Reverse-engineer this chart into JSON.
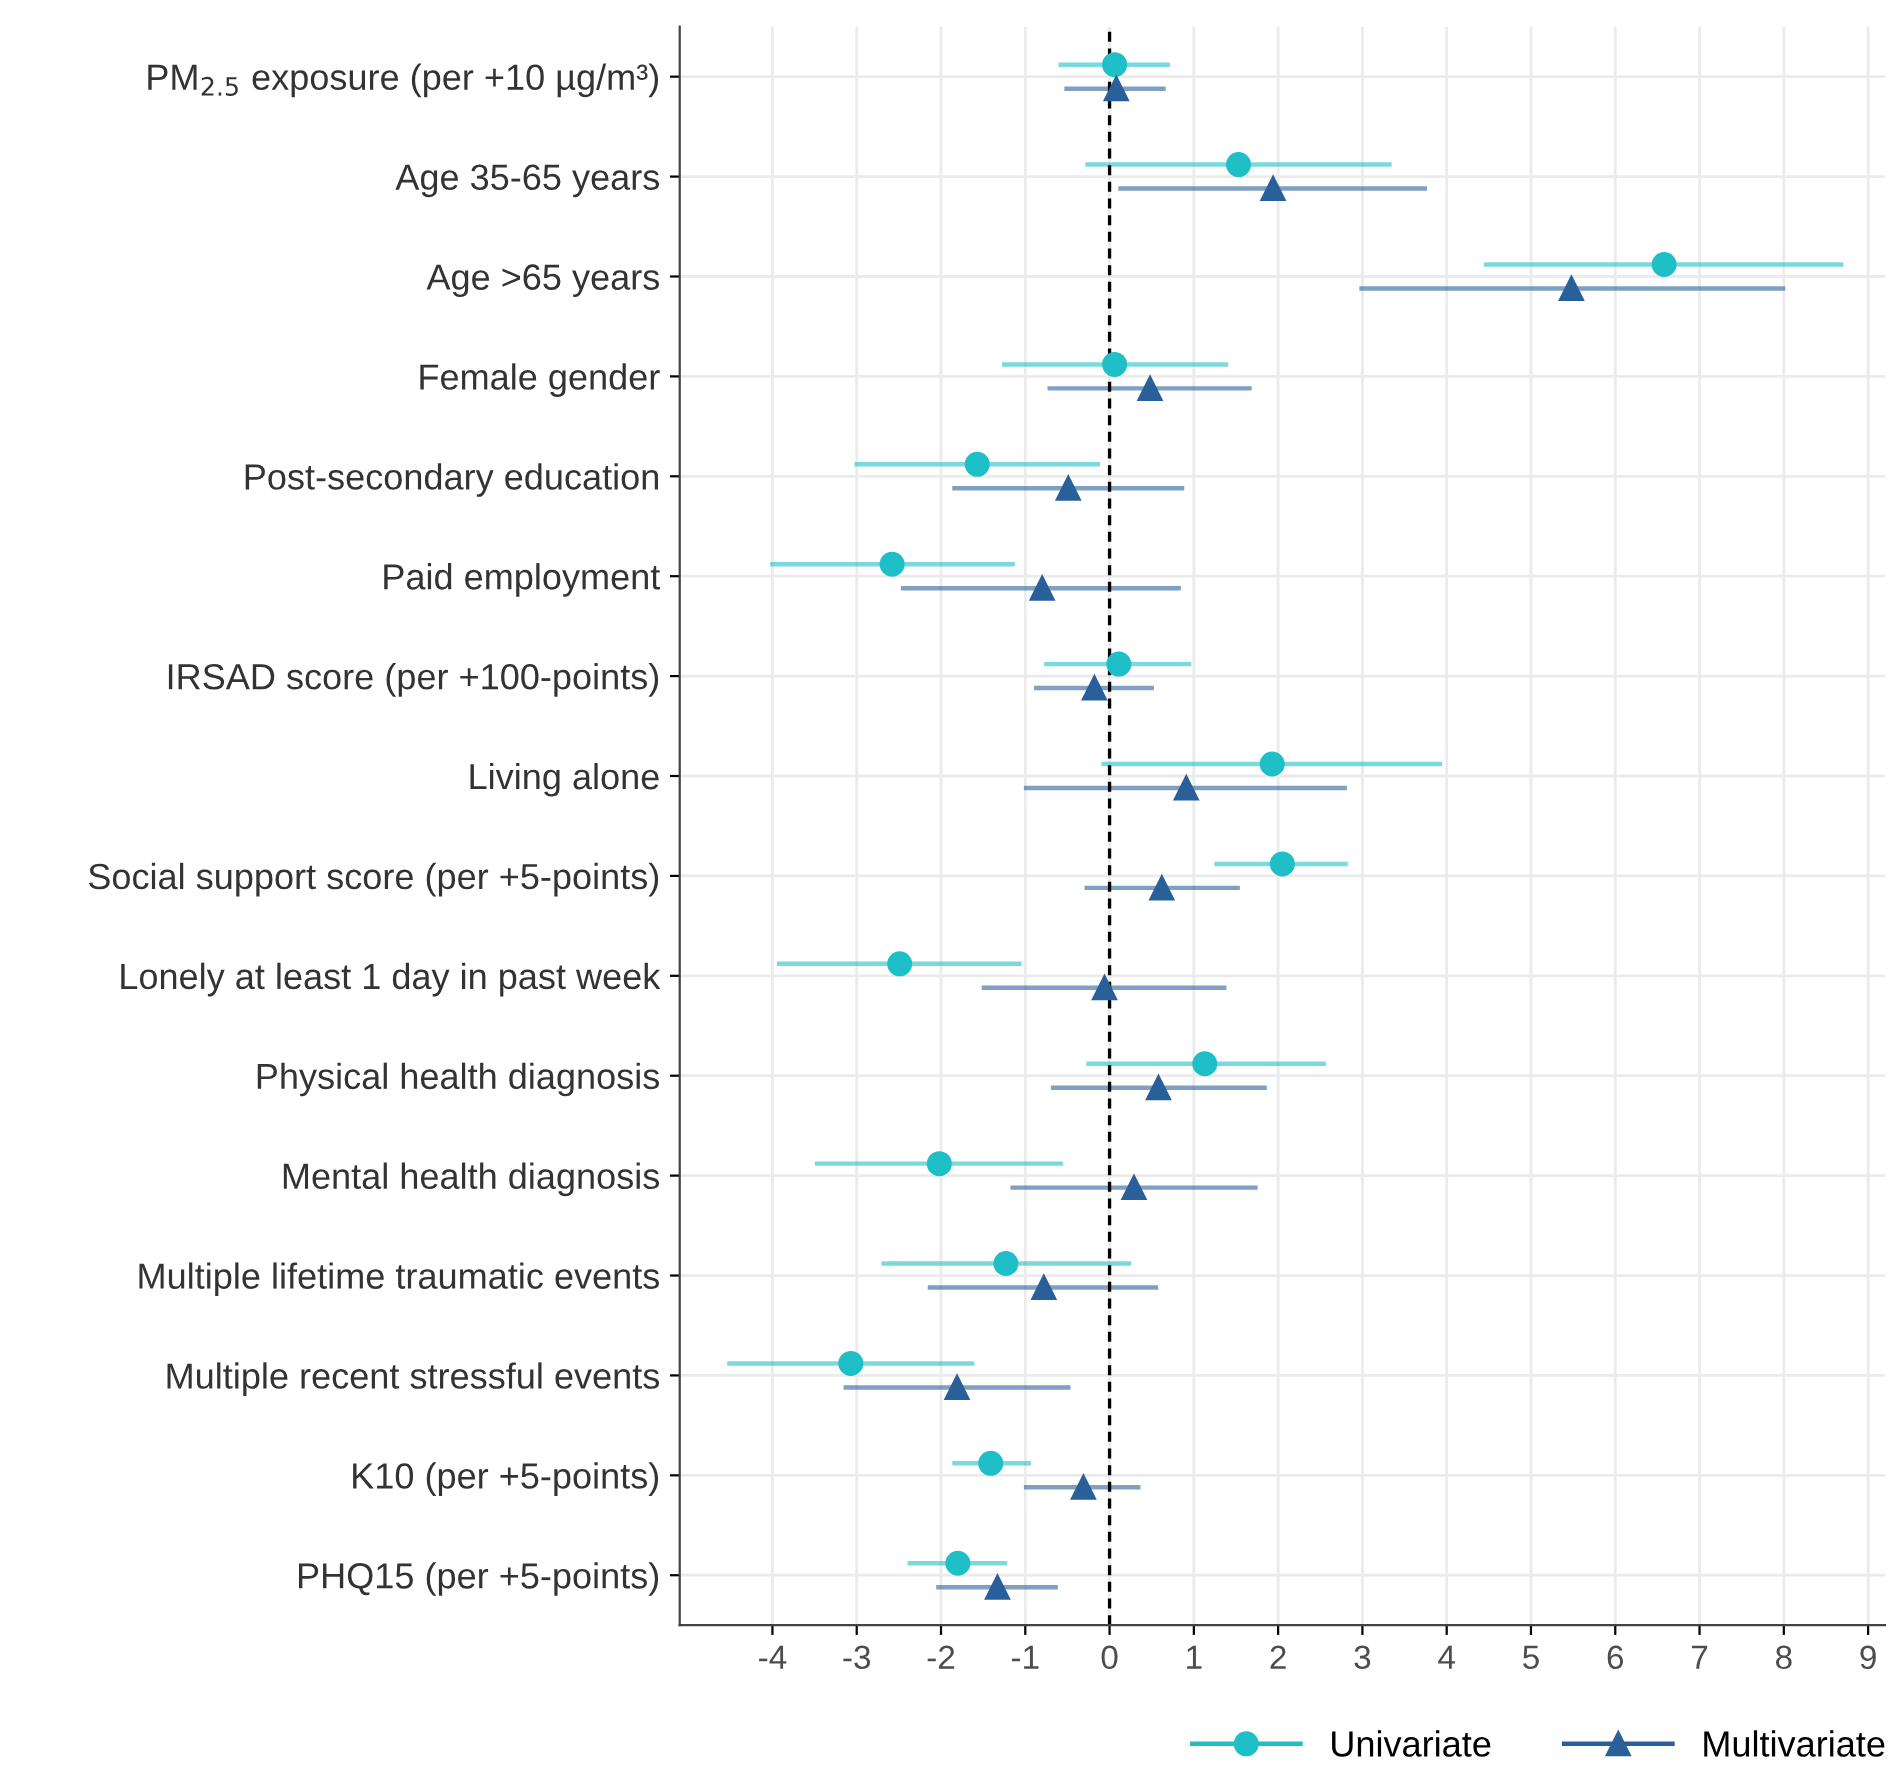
{
  "chart_data": {
    "type": "scatter",
    "orientation": "horizontal",
    "categories": [
      "PM$_{2.5}$ exposure (per +10 µg/m³)",
      "Age 35-65 years",
      "Age >65 years",
      "Female gender",
      "Post-secondary education",
      "Paid employment",
      "IRSAD score (per +100-points)",
      "Living alone",
      "Social support score (per +5-points)",
      "Lonely at least 1 day in past week",
      "Physical health diagnosis",
      "Mental health diagnosis",
      "Multiple lifetime traumatic events",
      "Multiple recent stressful events",
      "K10 (per +5-points)",
      "PHQ15 (per +5-points)"
    ],
    "series": [
      {
        "name": "Univariate",
        "color": "#1fbfc8",
        "marker": "circle",
        "values": [
          0.06,
          1.53,
          6.58,
          0.06,
          -1.57,
          -2.58,
          0.11,
          1.93,
          2.05,
          -2.49,
          1.13,
          -2.02,
          -1.23,
          -3.07,
          -1.41,
          -1.8
        ],
        "errors": [
          [
            -0.58,
            0.69
          ],
          [
            -0.26,
            3.32
          ],
          [
            4.47,
            8.68
          ],
          [
            -1.25,
            1.38
          ],
          [
            -3.0,
            -0.14
          ],
          [
            -4.0,
            -1.15
          ],
          [
            -0.75,
            0.94
          ],
          [
            -0.07,
            3.92
          ],
          [
            1.27,
            2.8
          ],
          [
            -3.92,
            -1.07
          ],
          [
            -0.25,
            2.54
          ],
          [
            -3.47,
            -0.58
          ],
          [
            -2.68,
            0.23
          ],
          [
            -4.51,
            -1.63
          ],
          [
            -1.84,
            -0.96
          ],
          [
            -2.37,
            -1.24
          ]
        ]
      },
      {
        "name": "Multivariate",
        "color": "#2a6099",
        "marker": "triangle",
        "values": [
          0.08,
          1.94,
          5.48,
          0.48,
          -0.49,
          -0.8,
          -0.18,
          0.91,
          0.62,
          -0.06,
          0.58,
          0.29,
          -0.78,
          -1.81,
          -0.31,
          -1.33
        ],
        "errors": [
          [
            -0.51,
            0.64
          ],
          [
            0.13,
            3.74
          ],
          [
            2.99,
            7.99
          ],
          [
            -0.71,
            1.66
          ],
          [
            -1.84,
            0.86
          ],
          [
            -2.45,
            0.82
          ],
          [
            -0.87,
            0.5
          ],
          [
            -0.99,
            2.79
          ],
          [
            -0.27,
            1.52
          ],
          [
            -1.49,
            1.36
          ],
          [
            -0.67,
            1.84
          ],
          [
            -1.15,
            1.73
          ],
          [
            -2.13,
            0.55
          ],
          [
            -3.13,
            -0.49
          ],
          [
            -0.99,
            0.34
          ],
          [
            -2.03,
            -0.64
          ]
        ]
      }
    ],
    "xlim": [
      -5.1,
      9.2
    ],
    "xticks": [
      -4,
      -3,
      -2,
      -1,
      0,
      1,
      2,
      3,
      4,
      5,
      6,
      7,
      8,
      9
    ],
    "ref_lines": [
      {
        "axis": "x",
        "value": 0,
        "color": "#000000",
        "line_style": "dashed"
      }
    ],
    "grid": true,
    "legend": "bottom right"
  }
}
